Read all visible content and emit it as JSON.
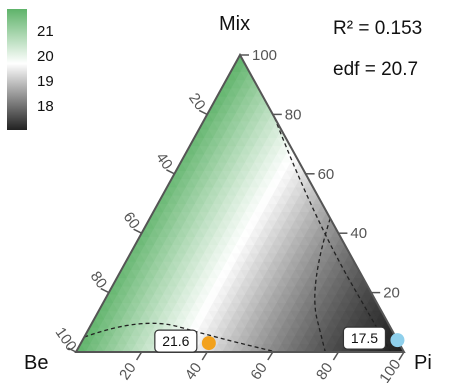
{
  "chart_data": {
    "type": "ternary_contour",
    "vertices": {
      "left": "Be",
      "right": "Pi",
      "top": "Mix"
    },
    "ticks": [
      "20",
      "40",
      "60",
      "80",
      "100"
    ],
    "legend": {
      "ticks": [
        "21",
        "20",
        "19",
        "18"
      ],
      "colors": {
        "high": "#5fb36a",
        "mid": "#ffffff",
        "low": "#222222"
      },
      "range": [
        17.7,
        21.6
      ]
    },
    "stats": {
      "r2": "R² = 0.153",
      "edf": "edf = 20.7"
    },
    "contours": [
      {
        "level": 21,
        "points": [
          [
            0.95,
            0.05,
            0.0
          ],
          [
            0.74,
            0.12,
            0.14
          ],
          [
            0.55,
            0.05,
            0.4
          ],
          [
            0.39,
            0.0,
            0.61
          ]
        ]
      },
      {
        "level": 20,
        "points": [
          [
            0.0,
            0.45,
            0.55
          ],
          [
            0.18,
            0.22,
            0.6
          ],
          [
            0.24,
            0.0,
            0.76
          ]
        ]
      },
      {
        "level": 19,
        "points": [
          [
            0.0,
            0.79,
            0.21
          ],
          [
            0.05,
            0.45,
            0.5
          ],
          [
            0.04,
            0.0,
            0.96
          ]
        ]
      }
    ],
    "points": [
      {
        "label": "21.6",
        "color": "#f2a11c",
        "Be": 0.58,
        "Mix": 0.03,
        "Pi": 0.39
      },
      {
        "label": "17.5",
        "color": "#8fd0ec",
        "Be": 0.0,
        "Mix": 0.04,
        "Pi": 0.96
      }
    ]
  }
}
